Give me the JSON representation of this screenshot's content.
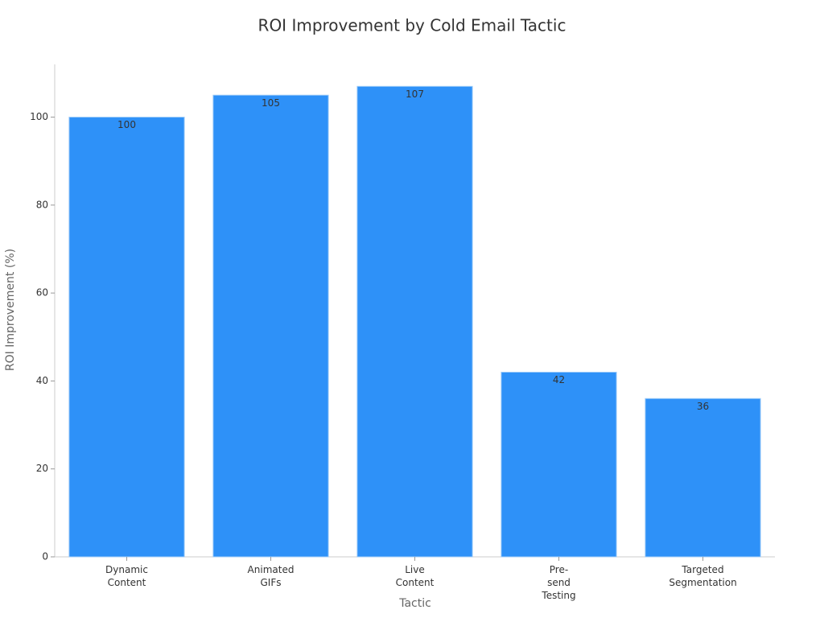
{
  "chart_data": {
    "type": "bar",
    "title": "ROI Improvement by Cold Email Tactic",
    "x_label": "Tactic",
    "y_label": "ROI Improvement (%)",
    "categories": [
      "Dynamic Content",
      "Animated GIFs",
      "Live Content",
      "Pre-send Testing",
      "Targeted Segmentation"
    ],
    "values": [
      100,
      105,
      107,
      42,
      36
    ],
    "color": "#2e91f8",
    "ylim": [
      0,
      112
    ],
    "yticks": [
      0,
      20,
      40,
      60,
      80,
      100
    ]
  }
}
